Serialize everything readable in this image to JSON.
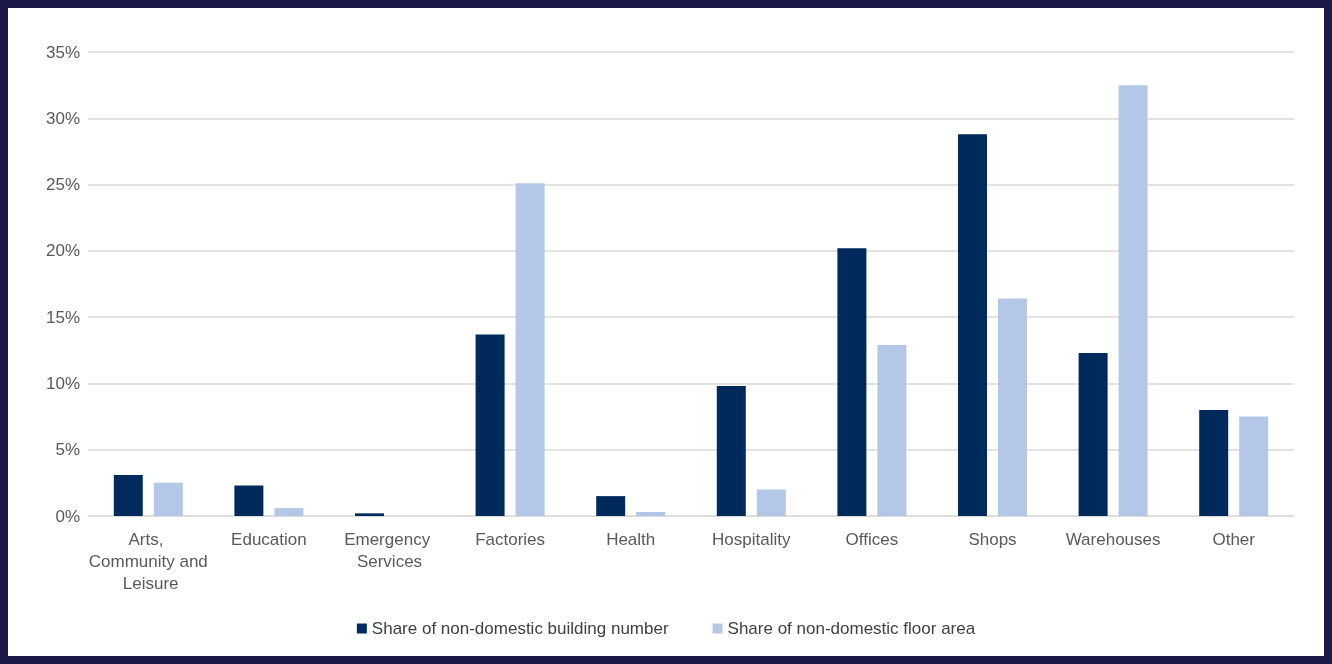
{
  "chart_data": {
    "type": "bar",
    "categories": [
      "Arts, Community and Leisure",
      "Education",
      "Emergency Services",
      "Factories",
      "Health",
      "Hospitality",
      "Offices",
      "Shops",
      "Warehouses",
      "Other"
    ],
    "series": [
      {
        "name": "Share of non-domestic building number",
        "color": "#002a5c",
        "values": [
          3.1,
          2.3,
          0.2,
          13.7,
          1.5,
          9.8,
          20.2,
          28.8,
          12.3,
          8.0
        ]
      },
      {
        "name": "Share of non-domestic floor area",
        "color": "#b4c7e7",
        "values": [
          2.5,
          0.6,
          0,
          25.1,
          0.3,
          2.0,
          12.9,
          16.4,
          32.5,
          7.5
        ]
      }
    ],
    "ylim": [
      0,
      35
    ],
    "yticks": [
      {
        "value": 0,
        "label": "0%"
      },
      {
        "value": 5,
        "label": "5%"
      },
      {
        "value": 10,
        "label": "10%"
      },
      {
        "value": 15,
        "label": "15%"
      },
      {
        "value": 20,
        "label": "20%"
      },
      {
        "value": 25,
        "label": "25%"
      },
      {
        "value": 30,
        "label": "30%"
      },
      {
        "value": 35,
        "label": "35%"
      }
    ],
    "grid": "y",
    "legend": "bottom"
  }
}
